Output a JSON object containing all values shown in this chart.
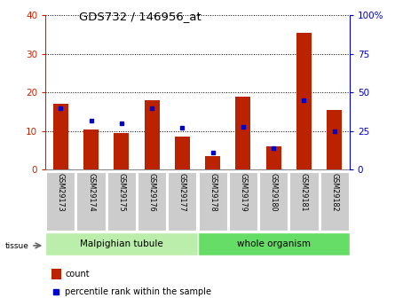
{
  "title": "GDS732 / 146956_at",
  "samples": [
    "GSM29173",
    "GSM29174",
    "GSM29175",
    "GSM29176",
    "GSM29177",
    "GSM29178",
    "GSM29179",
    "GSM29180",
    "GSM29181",
    "GSM29182"
  ],
  "counts": [
    17,
    10.5,
    9.5,
    18,
    8.5,
    3.5,
    19,
    6,
    35.5,
    15.5
  ],
  "percentiles": [
    40,
    32,
    30,
    40,
    27,
    11,
    28,
    14,
    45,
    25
  ],
  "ylim_left": [
    0,
    40
  ],
  "ylim_right": [
    0,
    100
  ],
  "yticks_left": [
    0,
    10,
    20,
    30,
    40
  ],
  "yticks_right": [
    0,
    25,
    50,
    75,
    100
  ],
  "bar_color": "#bb2200",
  "dot_color": "#0000cc",
  "grid_color": "#000000",
  "plot_bg": "#ffffff",
  "tissue_groups": [
    {
      "label": "Malpighian tubule",
      "start": 0,
      "end": 5,
      "color": "#bbeeaa"
    },
    {
      "label": "whole organism",
      "start": 5,
      "end": 10,
      "color": "#66dd66"
    }
  ],
  "left_tick_color": "#cc2200",
  "right_tick_color": "#0000cc",
  "tick_label_bg": "#cccccc",
  "bar_width": 0.5
}
